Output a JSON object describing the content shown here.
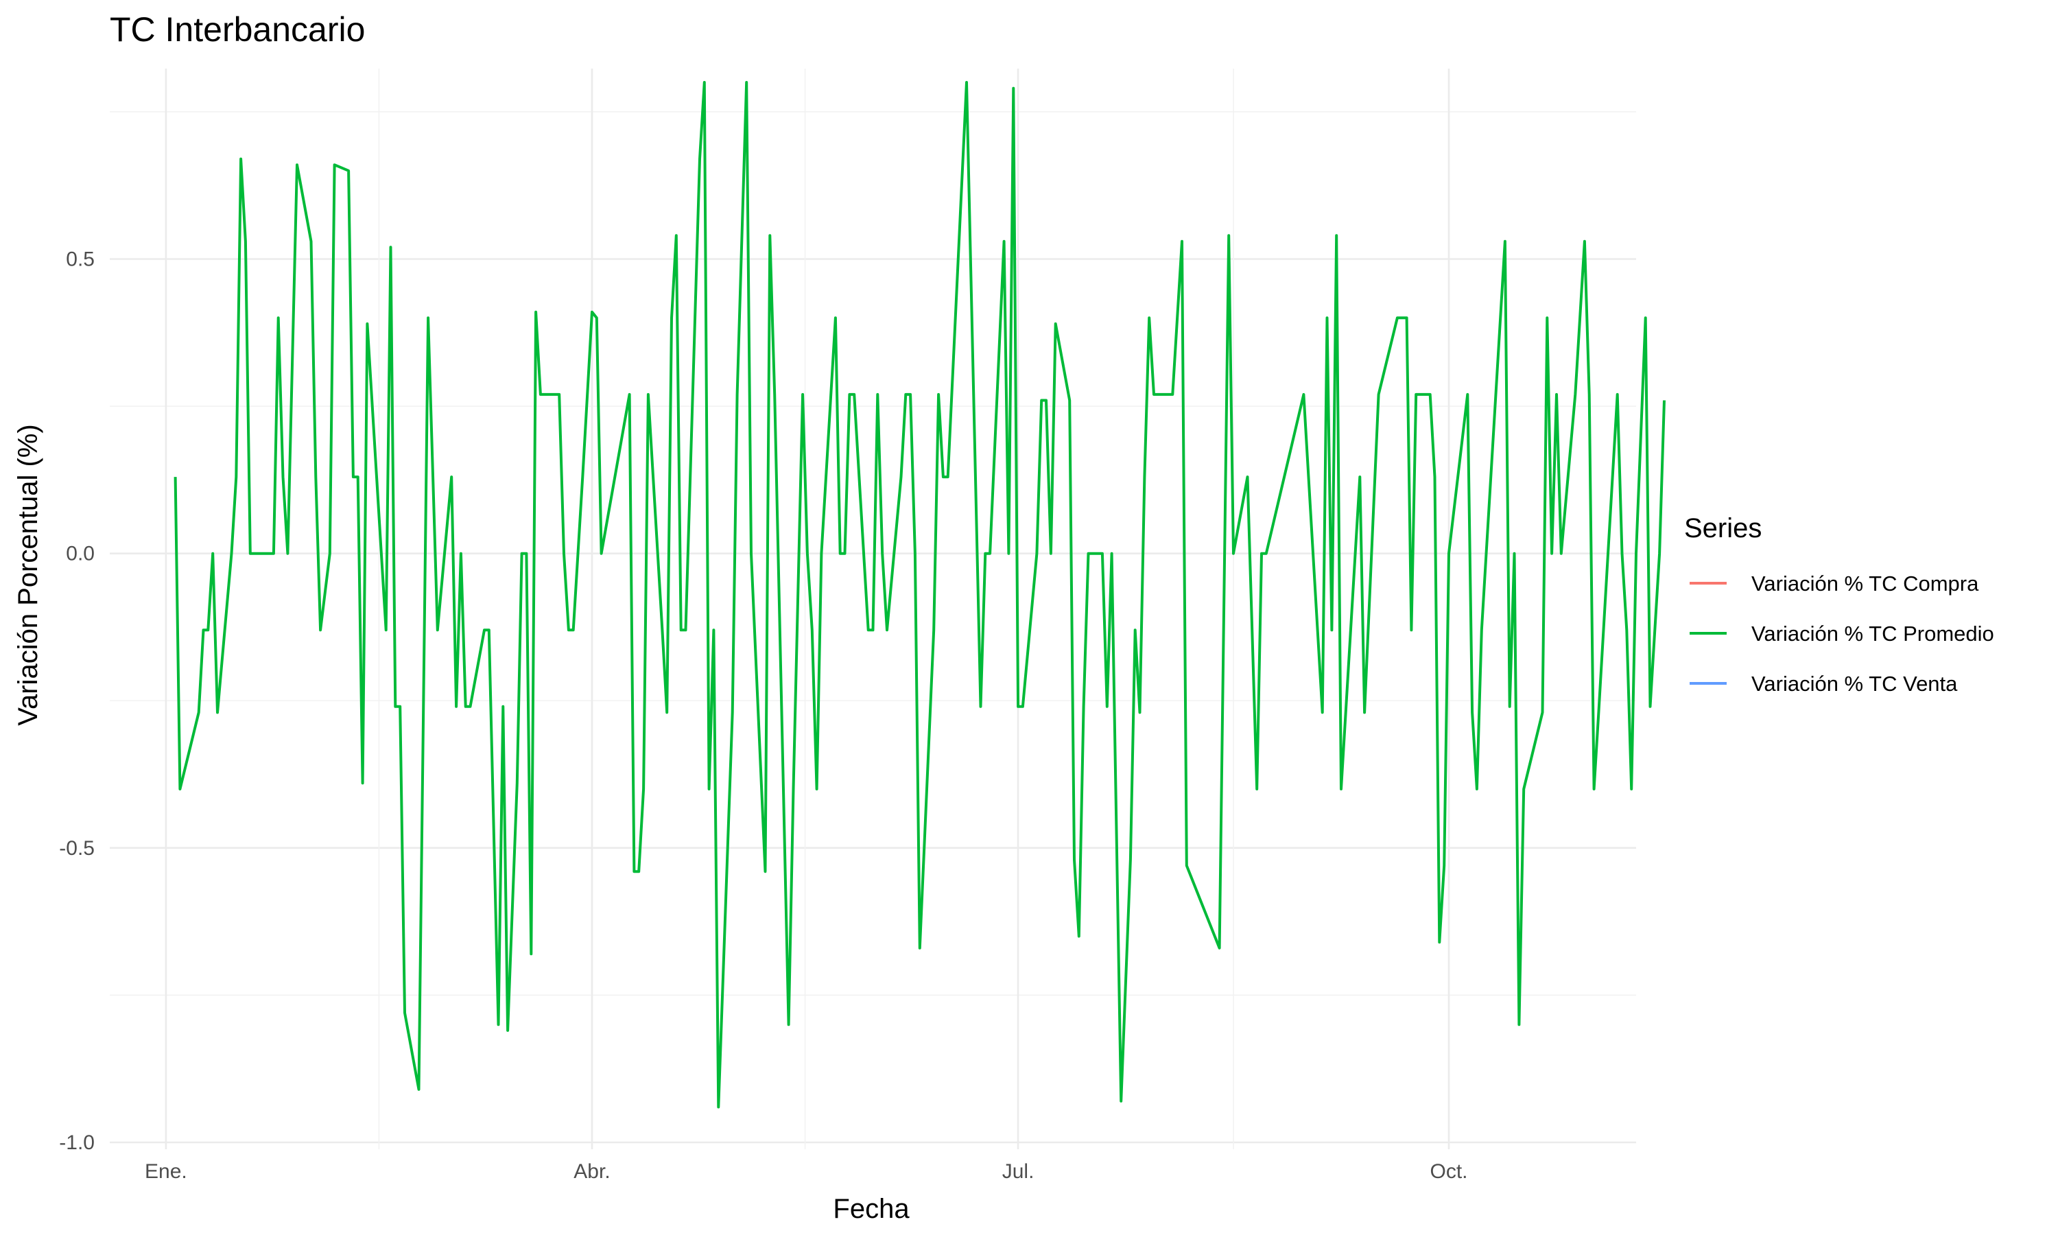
{
  "chart_data": {
    "type": "line",
    "title": "TC Interbancario",
    "xlabel": "Fecha",
    "ylabel": "Variación Porcentual (%)",
    "ylim": [
      -1.0,
      0.8
    ],
    "y_ticks": [
      -1.0,
      -0.5,
      0.0,
      0.5
    ],
    "y_tick_labels": [
      "-1.0",
      "-0.5",
      "0.0",
      "0.5"
    ],
    "x_ticks": [
      {
        "label": "Ene.",
        "date": "2024-01-01"
      },
      {
        "label": "Abr.",
        "date": "2024-04-01"
      },
      {
        "label": "Jul.",
        "date": "2024-07-01"
      },
      {
        "label": "Oct.",
        "date": "2024-10-01"
      }
    ],
    "xlim": [
      "2023-12-20",
      "2024-11-10"
    ],
    "grid": true,
    "legend": {
      "title": "Series",
      "position": "right",
      "entries": [
        {
          "name": "Variación % TC Compra",
          "color": "#F8766D"
        },
        {
          "name": "Variación % TC Promedio",
          "color": "#00BA38"
        },
        {
          "name": "Variación % TC Venta",
          "color": "#619CFF"
        }
      ]
    },
    "series": [
      {
        "name": "Variación % TC Promedio",
        "color": "#00BA38",
        "points": [
          [
            "2024-01-03",
            0.13
          ],
          [
            "2024-01-04",
            -0.4
          ],
          [
            "2024-01-08",
            -0.27
          ],
          [
            "2024-01-09",
            -0.13
          ],
          [
            "2024-01-10",
            -0.13
          ],
          [
            "2024-01-11",
            0.0
          ],
          [
            "2024-01-12",
            -0.27
          ],
          [
            "2024-01-15",
            0.0
          ],
          [
            "2024-01-16",
            0.13
          ],
          [
            "2024-01-17",
            0.67
          ],
          [
            "2024-01-18",
            0.53
          ],
          [
            "2024-01-19",
            0.0
          ],
          [
            "2024-01-22",
            0.0
          ],
          [
            "2024-01-23",
            0.0
          ],
          [
            "2024-01-24",
            0.0
          ],
          [
            "2024-01-25",
            0.4
          ],
          [
            "2024-01-26",
            0.13
          ],
          [
            "2024-01-27",
            0.0
          ],
          [
            "2024-01-29",
            0.66
          ],
          [
            "2024-02-01",
            0.53
          ],
          [
            "2024-02-02",
            0.13
          ],
          [
            "2024-02-03",
            -0.13
          ],
          [
            "2024-02-05",
            0.0
          ],
          [
            "2024-02-06",
            0.66
          ],
          [
            "2024-02-09",
            0.65
          ],
          [
            "2024-02-10",
            0.13
          ],
          [
            "2024-02-11",
            0.13
          ],
          [
            "2024-02-12",
            -0.39
          ],
          [
            "2024-02-13",
            0.39
          ],
          [
            "2024-02-15",
            0.13
          ],
          [
            "2024-02-17",
            -0.13
          ],
          [
            "2024-02-18",
            0.52
          ],
          [
            "2024-02-19",
            -0.26
          ],
          [
            "2024-02-20",
            -0.26
          ],
          [
            "2024-02-21",
            -0.78
          ],
          [
            "2024-02-24",
            -0.91
          ],
          [
            "2024-02-26",
            0.4
          ],
          [
            "2024-02-28",
            -0.13
          ],
          [
            "2024-03-02",
            0.13
          ],
          [
            "2024-03-03",
            -0.26
          ],
          [
            "2024-03-04",
            0.0
          ],
          [
            "2024-03-05",
            -0.26
          ],
          [
            "2024-03-06",
            -0.26
          ],
          [
            "2024-03-09",
            -0.13
          ],
          [
            "2024-03-10",
            -0.13
          ],
          [
            "2024-03-12",
            -0.8
          ],
          [
            "2024-03-13",
            -0.26
          ],
          [
            "2024-03-14",
            -0.81
          ],
          [
            "2024-03-16",
            -0.39
          ],
          [
            "2024-03-17",
            0.0
          ],
          [
            "2024-03-18",
            0.0
          ],
          [
            "2024-03-19",
            -0.68
          ],
          [
            "2024-03-20",
            0.41
          ],
          [
            "2024-03-21",
            0.27
          ],
          [
            "2024-03-25",
            0.27
          ],
          [
            "2024-03-26",
            0.0
          ],
          [
            "2024-03-27",
            -0.13
          ],
          [
            "2024-03-28",
            -0.13
          ],
          [
            "2024-03-30",
            0.13
          ],
          [
            "2024-03-31",
            0.27
          ],
          [
            "2024-04-01",
            0.41
          ],
          [
            "2024-04-02",
            0.4
          ],
          [
            "2024-04-03",
            0.0
          ],
          [
            "2024-04-09",
            0.27
          ],
          [
            "2024-04-10",
            -0.54
          ],
          [
            "2024-04-11",
            -0.54
          ],
          [
            "2024-04-12",
            -0.4
          ],
          [
            "2024-04-13",
            0.27
          ],
          [
            "2024-04-16",
            -0.13
          ],
          [
            "2024-04-17",
            -0.27
          ],
          [
            "2024-04-18",
            0.4
          ],
          [
            "2024-04-19",
            0.54
          ],
          [
            "2024-04-20",
            -0.13
          ],
          [
            "2024-04-21",
            -0.13
          ],
          [
            "2024-04-23",
            0.4
          ],
          [
            "2024-04-24",
            0.67
          ],
          [
            "2024-04-25",
            0.8
          ],
          [
            "2024-04-26",
            -0.4
          ],
          [
            "2024-04-27",
            -0.13
          ],
          [
            "2024-04-28",
            -0.94
          ],
          [
            "2024-05-01",
            -0.27
          ],
          [
            "2024-05-02",
            0.27
          ],
          [
            "2024-05-04",
            0.8
          ],
          [
            "2024-05-05",
            0.0
          ],
          [
            "2024-05-08",
            -0.54
          ],
          [
            "2024-05-09",
            0.54
          ],
          [
            "2024-05-10",
            0.27
          ],
          [
            "2024-05-13",
            -0.8
          ],
          [
            "2024-05-14",
            -0.4
          ],
          [
            "2024-05-16",
            0.27
          ],
          [
            "2024-05-17",
            0.0
          ],
          [
            "2024-05-18",
            -0.13
          ],
          [
            "2024-05-19",
            -0.4
          ],
          [
            "2024-05-20",
            0.0
          ],
          [
            "2024-05-23",
            0.4
          ],
          [
            "2024-05-24",
            0.0
          ],
          [
            "2024-05-25",
            0.0
          ],
          [
            "2024-05-26",
            0.27
          ],
          [
            "2024-05-27",
            0.27
          ],
          [
            "2024-05-30",
            -0.13
          ],
          [
            "2024-05-31",
            -0.13
          ],
          [
            "2024-06-01",
            0.27
          ],
          [
            "2024-06-02",
            0.0
          ],
          [
            "2024-06-03",
            -0.13
          ],
          [
            "2024-06-06",
            0.13
          ],
          [
            "2024-06-07",
            0.27
          ],
          [
            "2024-06-08",
            0.27
          ],
          [
            "2024-06-09",
            0.0
          ],
          [
            "2024-06-10",
            -0.67
          ],
          [
            "2024-06-13",
            -0.13
          ],
          [
            "2024-06-14",
            0.27
          ],
          [
            "2024-06-15",
            0.13
          ],
          [
            "2024-06-16",
            0.13
          ],
          [
            "2024-06-20",
            0.8
          ],
          [
            "2024-06-23",
            -0.26
          ],
          [
            "2024-06-24",
            0.0
          ],
          [
            "2024-06-25",
            0.0
          ],
          [
            "2024-06-28",
            0.53
          ],
          [
            "2024-06-29",
            0.0
          ],
          [
            "2024-06-30",
            0.79
          ],
          [
            "2024-07-01",
            -0.26
          ],
          [
            "2024-07-02",
            -0.26
          ],
          [
            "2024-07-05",
            0.0
          ],
          [
            "2024-07-06",
            0.26
          ],
          [
            "2024-07-07",
            0.26
          ],
          [
            "2024-07-08",
            0.0
          ],
          [
            "2024-07-09",
            0.39
          ],
          [
            "2024-07-12",
            0.26
          ],
          [
            "2024-07-13",
            -0.52
          ],
          [
            "2024-07-14",
            -0.65
          ],
          [
            "2024-07-15",
            -0.26
          ],
          [
            "2024-07-16",
            0.0
          ],
          [
            "2024-07-18",
            0.0
          ],
          [
            "2024-07-19",
            0.0
          ],
          [
            "2024-07-20",
            -0.26
          ],
          [
            "2024-07-21",
            0.0
          ],
          [
            "2024-07-23",
            -0.93
          ],
          [
            "2024-07-25",
            -0.52
          ],
          [
            "2024-07-26",
            -0.13
          ],
          [
            "2024-07-27",
            -0.27
          ],
          [
            "2024-07-28",
            0.13
          ],
          [
            "2024-07-29",
            0.4
          ],
          [
            "2024-07-30",
            0.27
          ],
          [
            "2024-08-03",
            0.27
          ],
          [
            "2024-08-05",
            0.53
          ],
          [
            "2024-08-06",
            -0.53
          ],
          [
            "2024-08-13",
            -0.67
          ],
          [
            "2024-08-15",
            0.54
          ],
          [
            "2024-08-16",
            0.0
          ],
          [
            "2024-08-19",
            0.13
          ],
          [
            "2024-08-21",
            -0.4
          ],
          [
            "2024-08-22",
            0.0
          ],
          [
            "2024-08-23",
            0.0
          ],
          [
            "2024-08-31",
            0.27
          ],
          [
            "2024-09-04",
            -0.27
          ],
          [
            "2024-09-05",
            0.4
          ],
          [
            "2024-09-06",
            -0.13
          ],
          [
            "2024-09-07",
            0.54
          ],
          [
            "2024-09-08",
            -0.4
          ],
          [
            "2024-09-12",
            0.13
          ],
          [
            "2024-09-13",
            -0.27
          ],
          [
            "2024-09-16",
            0.27
          ],
          [
            "2024-09-20",
            0.4
          ],
          [
            "2024-09-22",
            0.4
          ],
          [
            "2024-09-23",
            -0.13
          ],
          [
            "2024-09-24",
            0.27
          ],
          [
            "2024-09-27",
            0.27
          ],
          [
            "2024-09-28",
            0.13
          ],
          [
            "2024-09-29",
            -0.66
          ],
          [
            "2024-09-30",
            -0.53
          ],
          [
            "2024-10-01",
            0.0
          ],
          [
            "2024-10-05",
            0.27
          ],
          [
            "2024-10-06",
            -0.27
          ],
          [
            "2024-10-07",
            -0.4
          ],
          [
            "2024-10-08",
            -0.13
          ],
          [
            "2024-10-13",
            0.53
          ],
          [
            "2024-10-14",
            -0.26
          ],
          [
            "2024-10-15",
            0.0
          ],
          [
            "2024-10-16",
            -0.8
          ],
          [
            "2024-10-17",
            -0.4
          ],
          [
            "2024-10-21",
            -0.27
          ],
          [
            "2024-10-22",
            0.4
          ],
          [
            "2024-10-23",
            0.0
          ],
          [
            "2024-10-24",
            0.27
          ],
          [
            "2024-10-25",
            0.0
          ],
          [
            "2024-10-28",
            0.27
          ],
          [
            "2024-10-30",
            0.53
          ],
          [
            "2024-10-31",
            0.27
          ],
          [
            "2024-11-01",
            -0.4
          ],
          [
            "2024-11-02",
            -0.27
          ],
          [
            "2024-11-06",
            0.27
          ],
          [
            "2024-11-07",
            0.0
          ],
          [
            "2024-11-08",
            -0.13
          ],
          [
            "2024-11-09",
            -0.4
          ],
          [
            "2024-11-10",
            0.0
          ],
          [
            "2024-11-12",
            0.4
          ],
          [
            "2024-11-13",
            -0.26
          ],
          [
            "2024-11-15",
            0.0
          ],
          [
            "2024-11-16",
            0.26
          ]
        ]
      }
    ]
  }
}
